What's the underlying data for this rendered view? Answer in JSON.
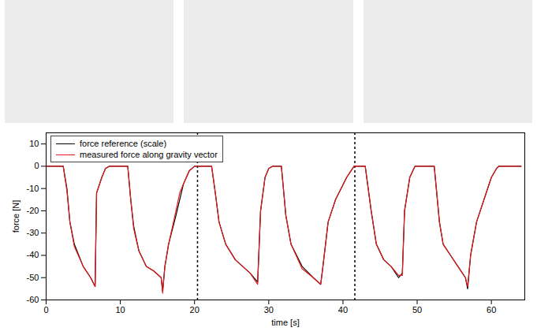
{
  "chart_data": {
    "type": "line",
    "xlabel": "time [s]",
    "ylabel": "force [N]",
    "xlim": [
      0,
      64.5
    ],
    "xticks": [
      0,
      10,
      20,
      30,
      40,
      50,
      60
    ],
    "ylim": [
      -60,
      15
    ],
    "yticks": [
      -60,
      -50,
      -40,
      -30,
      -20,
      -10,
      0,
      10
    ],
    "legend": "top-left",
    "vlines": [
      20.4,
      41.6
    ],
    "x": [
      0,
      2.3,
      2.8,
      3.2,
      3.8,
      5,
      6,
      6.6,
      6.8,
      7.5,
      8,
      8.5,
      11,
      11.4,
      11.8,
      12.5,
      13.5,
      14.5,
      15.5,
      15.7,
      16,
      16.5,
      17.5,
      18,
      18.5,
      19.3,
      20,
      22.3,
      22.8,
      23.3,
      24.2,
      25.5,
      26.5,
      27.5,
      28.5,
      28.9,
      29.5,
      30,
      30.5,
      31.7,
      32.3,
      33,
      34.5,
      36,
      37,
      37.3,
      38,
      39,
      40.5,
      41.5,
      43,
      43.8,
      44.5,
      45.5,
      46.5,
      47.5,
      48,
      48.3,
      49,
      49.7,
      52.3,
      53,
      53.5,
      54.5,
      55.5,
      56.5,
      56.8,
      57.2,
      58,
      59,
      60,
      60.7,
      61,
      64
    ],
    "series": [
      {
        "name": "force reference (scale)",
        "color": "#000000",
        "values": [
          0,
          0,
          -10,
          -25,
          -35,
          -45,
          -50,
          -54,
          -12,
          -5,
          -1,
          0,
          0,
          -15,
          -27,
          -38,
          -45,
          -47,
          -50,
          -56,
          -45,
          -35,
          -22,
          -15,
          -8,
          -2,
          0,
          0,
          -12,
          -25,
          -35,
          -42,
          -45,
          -48,
          -52,
          -20,
          -5,
          -1,
          0,
          0,
          -22,
          -35,
          -45,
          -50,
          -53,
          -45,
          -25,
          -15,
          -5,
          0,
          0,
          -20,
          -35,
          -42,
          -45,
          -50,
          -48,
          -20,
          -5,
          0,
          0,
          -25,
          -35,
          -40,
          -45,
          -50,
          -55,
          -40,
          -25,
          -15,
          -5,
          -1,
          0,
          0
        ]
      },
      {
        "name": "measured force along gravity vector",
        "color": "#e8191c",
        "values": [
          0,
          0,
          -11,
          -25,
          -36,
          -45,
          -50,
          -54,
          -12,
          -5,
          -1,
          0,
          0,
          -15,
          -28,
          -38,
          -45,
          -47,
          -50,
          -57,
          -45,
          -35,
          -20,
          -12,
          -8,
          -2,
          0,
          0,
          -12,
          -25,
          -35,
          -42,
          -45,
          -48,
          -53,
          -20,
          -5,
          -1,
          0,
          0,
          -22,
          -35,
          -46,
          -50,
          -53,
          -45,
          -25,
          -15,
          -5,
          0,
          0,
          -20,
          -35,
          -42,
          -45,
          -49,
          -49,
          -20,
          -5,
          0,
          0,
          -25,
          -35,
          -40,
          -45,
          -50,
          -54,
          -40,
          -25,
          -15,
          -5,
          -1,
          0,
          0
        ]
      }
    ]
  }
}
